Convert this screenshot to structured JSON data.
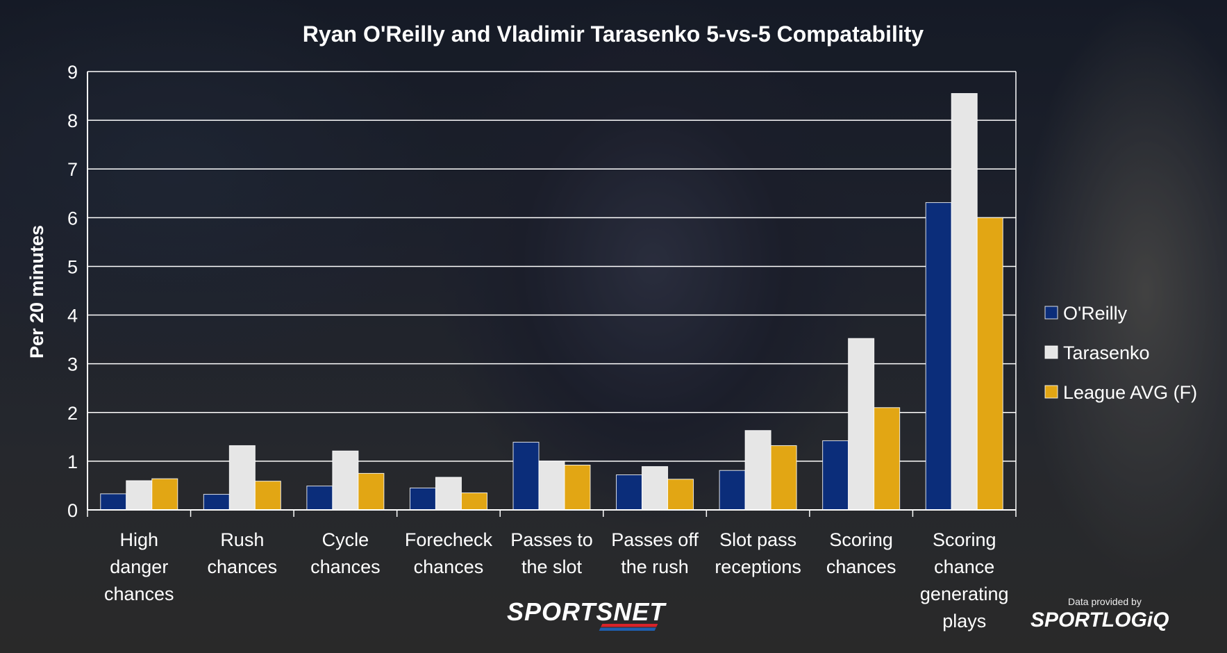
{
  "chart_data": {
    "type": "bar",
    "title": "Ryan O'Reilly and Vladimir Tarasenko 5-vs-5 Compatability",
    "ylabel": "Per 20 minutes",
    "xlabel": "",
    "ylim": [
      0,
      9
    ],
    "yticks": [
      0,
      1,
      2,
      3,
      4,
      5,
      6,
      7,
      8,
      9
    ],
    "grid": true,
    "legend_position": "right",
    "categories": [
      [
        "High",
        "danger",
        "chances"
      ],
      [
        "Rush",
        "chances"
      ],
      [
        "Cycle",
        "chances"
      ],
      [
        "Forecheck",
        "chances"
      ],
      [
        "Passes to",
        "the slot"
      ],
      [
        "Passes off",
        "the rush"
      ],
      [
        "Slot pass",
        "receptions"
      ],
      [
        "Scoring",
        "chances"
      ],
      [
        "Scoring",
        "chance",
        "generating",
        "plays"
      ]
    ],
    "series": [
      {
        "name": "O'Reilly",
        "color": "#0b2d7a",
        "values": [
          0.33,
          0.32,
          0.49,
          0.45,
          1.39,
          0.72,
          0.81,
          1.42,
          6.31
        ]
      },
      {
        "name": "Tarasenko",
        "color": "#e6e6e6",
        "values": [
          0.6,
          1.32,
          1.21,
          0.67,
          1.0,
          0.89,
          1.63,
          3.52,
          8.55
        ]
      },
      {
        "name": "League AVG (F)",
        "color": "#e2a614",
        "values": [
          0.64,
          0.59,
          0.75,
          0.35,
          0.92,
          0.63,
          1.32,
          2.1,
          6.0
        ]
      }
    ]
  },
  "branding": {
    "sportsnet": "SPORTSNET",
    "provided_by": "Data provided by",
    "sportlogiq": "SPORTLOGiQ"
  }
}
